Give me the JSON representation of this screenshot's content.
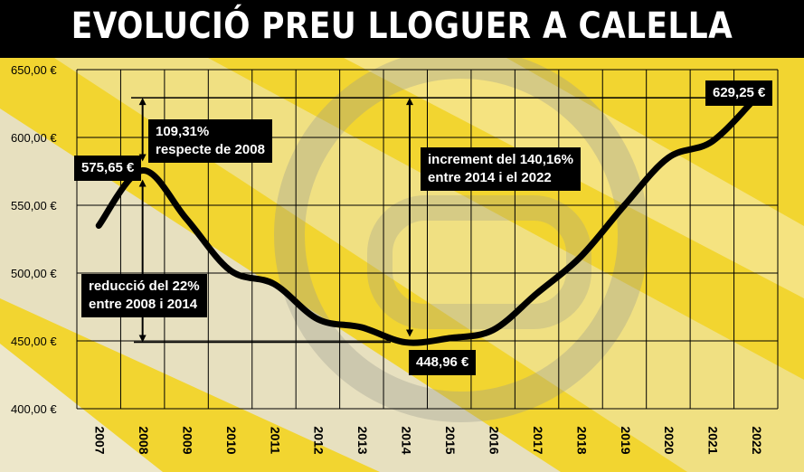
{
  "header": {
    "title": "EVOLUCIÓ PREU LLOGUER A CALELLA"
  },
  "chart_data": {
    "type": "line",
    "title": "EVOLUCIÓ PREU LLOGUER A CALELLA",
    "xlabel": "",
    "ylabel": "",
    "categories": [
      "2007",
      "2008",
      "2009",
      "2010",
      "2011",
      "2012",
      "2013",
      "2014",
      "2015",
      "2016",
      "2017",
      "2018",
      "2019",
      "2020",
      "2021",
      "2022"
    ],
    "series": [
      {
        "values": [
          535,
          575.65,
          540,
          502,
          492,
          466,
          460,
          448.96,
          452,
          458,
          485,
          512,
          550,
          585,
          597,
          629.25
        ]
      }
    ],
    "ylim": [
      400,
      650
    ],
    "y_ticks": [
      "400,00 €",
      "450,00 €",
      "500,00 €",
      "550,00 €",
      "600,00 €",
      "650,00 €"
    ],
    "grid": true,
    "legend": "none",
    "line_color": "#000000",
    "value_labels": {
      "start_peak": "575,65 €",
      "minimum": "448,96 €",
      "end": "629,25 €"
    },
    "annotations": {
      "increase_2008": "109,31%\nrespecte de 2008",
      "reduction": "reducció del 22%\nentre 2008 i 2014",
      "increase_2014": "increment del 140,16%\nentre 2014 i el 2022"
    }
  }
}
